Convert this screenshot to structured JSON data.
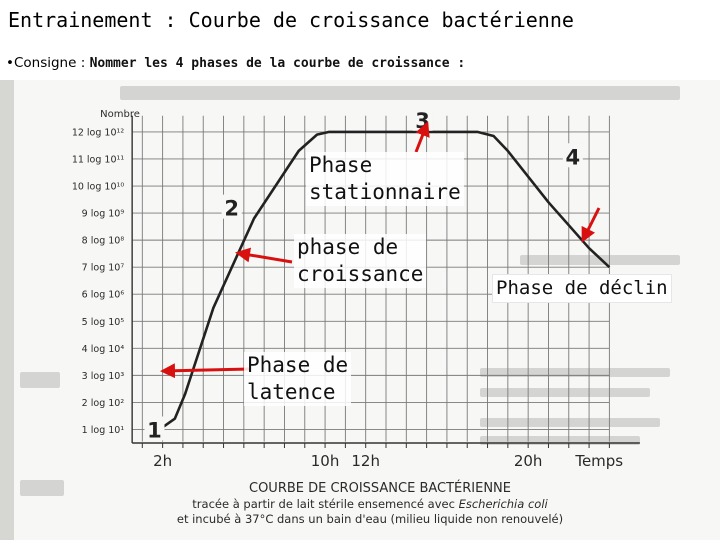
{
  "slide": {
    "title": "Entrainement : Courbe de croissance bactérienne",
    "bullet": "•Consigne :",
    "instruction": "Nommer les 4 phases de la courbe de croissance :"
  },
  "chart_data": {
    "type": "line",
    "title": "COURBE DE CROISSANCE BACTÉRIENNE",
    "caption_line1_prefix": "tracée à partir de lait stérile ensemencé avec",
    "caption_organism": "Escherichia coli",
    "caption_line2": "et incubé à 37°C dans un bain d'eau (milieu liquide non renouvelé)",
    "ylabel": "Nombre",
    "xlabel": "Temps",
    "y_ticks": [
      {
        "label": "1 log 10¹",
        "value": 1
      },
      {
        "label": "2 log 10²",
        "value": 2
      },
      {
        "label": "3 log 10³",
        "value": 3
      },
      {
        "label": "4 log 10⁴",
        "value": 4
      },
      {
        "label": "5 log 10⁵",
        "value": 5
      },
      {
        "label": "6 log 10⁶",
        "value": 6
      },
      {
        "label": "7 log 10⁷",
        "value": 7
      },
      {
        "label": "8 log 10⁸",
        "value": 8
      },
      {
        "label": "9 log 10⁹",
        "value": 9
      },
      {
        "label": "10 log 10¹⁰",
        "value": 10
      },
      {
        "label": "11 log 10¹¹",
        "value": 11
      },
      {
        "label": "12 log 10¹²",
        "value": 12
      }
    ],
    "x_ticks": [
      {
        "label": "2h",
        "value": 2
      },
      {
        "label": "10h",
        "value": 10
      },
      {
        "label": "12h",
        "value": 12
      },
      {
        "label": "20h",
        "value": 20
      }
    ],
    "xlim": [
      0,
      26
    ],
    "ylim": [
      0.5,
      12.7
    ],
    "grid": true,
    "series": [
      {
        "x": [
          1.2,
          2.0,
          2.6,
          3.1,
          4.5,
          6.5,
          8.7,
          9.6,
          10.2,
          11.0,
          12.0,
          17.5,
          18.3,
          19.0,
          21.0,
          23.0,
          24.0
        ],
        "y": [
          1.0,
          1.08,
          1.4,
          2.3,
          5.5,
          8.8,
          11.3,
          11.9,
          12.0,
          12.0,
          12.0,
          12.0,
          11.85,
          11.3,
          9.4,
          7.7,
          7.0
        ]
      }
    ],
    "phase_numbers": [
      {
        "label": "1",
        "x": 1.6,
        "y": 1.0
      },
      {
        "label": "2",
        "x": 5.4,
        "y": 9.2
      },
      {
        "label": "3",
        "x": 14.8,
        "y": 12.45
      },
      {
        "label": "4",
        "x": 22.2,
        "y": 11.1
      }
    ]
  },
  "annotations": {
    "stationnaire_l1": "Phase",
    "stationnaire_l2": "stationnaire",
    "croissance_l1": "phase de",
    "croissance_l2": "croissance",
    "latence_l1": "Phase de",
    "latence_l2": "latence",
    "declin": "Phase de déclin"
  },
  "colors": {
    "curve": "#222222",
    "grid": "#7a7a7a",
    "arrow": "#d81010",
    "scan_text": "#2a2a2a"
  }
}
